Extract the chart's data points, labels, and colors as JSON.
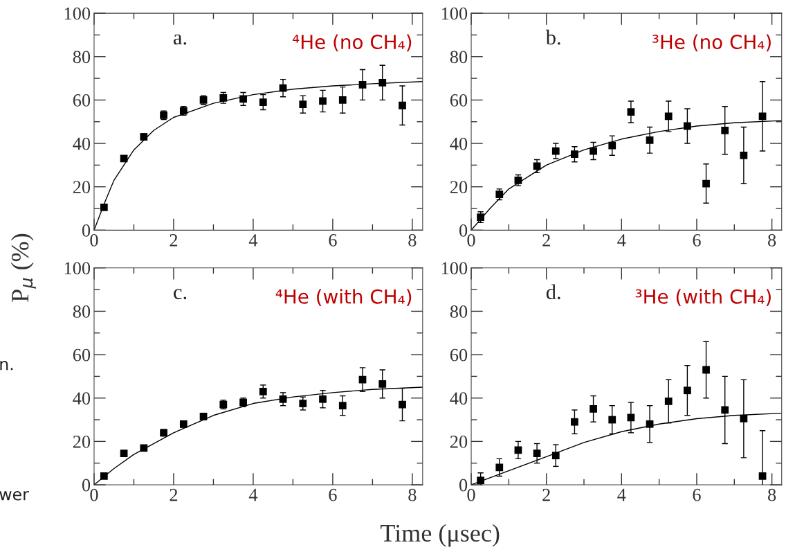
{
  "chart_data": [
    {
      "type": "scatter",
      "title": "⁴He (no CH₄)",
      "ylabel": "P$_{μ}$ (%)",
      "annotations": [
        "a."
      ],
      "xlim": [
        0,
        8.26
      ],
      "ylim": [
        0,
        100
      ],
      "xticks": [
        0,
        2,
        4,
        6,
        8
      ],
      "yticks": [
        0,
        20,
        40,
        60,
        80,
        100
      ],
      "grid": false,
      "legend": false,
      "series": [
        {
          "type": "scatter",
          "marker": "square",
          "color": "#000000",
          "x": [
            0.25,
            0.75,
            1.25,
            1.75,
            2.25,
            2.75,
            3.25,
            3.75,
            4.25,
            4.75,
            5.25,
            5.75,
            6.25,
            6.75,
            7.25,
            7.75
          ],
          "values": [
            10.5,
            33,
            43,
            53,
            55,
            60,
            61,
            60.5,
            59,
            65.5,
            58,
            59.5,
            60,
            67,
            68,
            57.5
          ],
          "errors": [
            1,
            1,
            1.5,
            2,
            2,
            2,
            2.5,
            3,
            3.5,
            4,
            4,
            5,
            6,
            7,
            8,
            9
          ]
        },
        {
          "type": "line",
          "marker": "none",
          "line_style": "solid",
          "color": "#000000",
          "x": [
            0,
            0.25,
            0.5,
            1,
            1.5,
            2,
            3,
            4,
            5,
            6,
            7,
            8.26
          ],
          "values": [
            0,
            12,
            23,
            37,
            46,
            52,
            58.5,
            62.5,
            65,
            66.5,
            67.5,
            68.5
          ]
        }
      ]
    },
    {
      "type": "scatter",
      "title": "³He (no CH₄)",
      "annotations": [
        "b."
      ],
      "xlim": [
        0,
        8.26
      ],
      "ylim": [
        0,
        100
      ],
      "xticks": [
        0,
        2,
        4,
        6,
        8
      ],
      "yticks": [
        0,
        20,
        40,
        60,
        80,
        100
      ],
      "grid": false,
      "legend": false,
      "series": [
        {
          "type": "scatter",
          "marker": "square",
          "color": "#000000",
          "x": [
            0.25,
            0.75,
            1.25,
            1.75,
            2.25,
            2.75,
            3.25,
            3.75,
            4.25,
            4.75,
            5.25,
            5.75,
            6.25,
            6.75,
            7.25,
            7.75
          ],
          "values": [
            6,
            16.5,
            23,
            29.5,
            36.5,
            35,
            36.5,
            39,
            54.5,
            41.5,
            52.5,
            48,
            21.5,
            46,
            34.5,
            52.5
          ],
          "errors": [
            2.5,
            2.5,
            2.5,
            3,
            3.5,
            3.5,
            4,
            4.5,
            5,
            6,
            7,
            8,
            9,
            11,
            13,
            16
          ]
        },
        {
          "type": "line",
          "marker": "none",
          "line_style": "solid",
          "color": "#000000",
          "x": [
            0,
            0.5,
            1,
            2,
            3,
            4,
            5,
            6,
            7,
            8.26
          ],
          "values": [
            0,
            10,
            19,
            30,
            37,
            42,
            45.5,
            48,
            49.5,
            50.5
          ]
        }
      ]
    },
    {
      "type": "scatter",
      "title": "⁴He (with CH₄)",
      "xlabel": "Time (μsec)",
      "annotations": [
        "c.",
        "n.",
        "wer"
      ],
      "xlim": [
        0,
        8.26
      ],
      "ylim": [
        0,
        100
      ],
      "xticks": [
        0,
        2,
        4,
        6,
        8
      ],
      "yticks": [
        0,
        20,
        40,
        60,
        80,
        100
      ],
      "grid": false,
      "legend": false,
      "series": [
        {
          "type": "scatter",
          "marker": "square",
          "color": "#000000",
          "x": [
            0.25,
            0.75,
            1.25,
            1.75,
            2.25,
            2.75,
            3.25,
            3.75,
            4.25,
            4.75,
            5.25,
            5.75,
            6.25,
            6.75,
            7.25,
            7.75
          ],
          "values": [
            4,
            14.5,
            17,
            24,
            28,
            31.5,
            37,
            38,
            43,
            39.5,
            37.5,
            39.5,
            36.5,
            48.5,
            46.5,
            37
          ],
          "errors": [
            1,
            1,
            1,
            1.5,
            1.5,
            1.5,
            2,
            2,
            3,
            3,
            3,
            4,
            4.5,
            5.5,
            6.5,
            7.5
          ]
        },
        {
          "type": "line",
          "marker": "none",
          "line_style": "solid",
          "color": "#000000",
          "x": [
            0,
            0.5,
            1,
            2,
            3,
            4,
            5,
            6,
            7,
            8.26
          ],
          "values": [
            0,
            7.5,
            14,
            24,
            32,
            37.5,
            40.5,
            42.5,
            44,
            45
          ]
        }
      ]
    },
    {
      "type": "scatter",
      "title": "³He (with CH₄)",
      "annotations": [
        "d."
      ],
      "xlim": [
        0,
        8.26
      ],
      "ylim": [
        0,
        100
      ],
      "xticks": [
        0,
        2,
        4,
        6,
        8
      ],
      "yticks": [
        0,
        20,
        40,
        60,
        80,
        100
      ],
      "grid": false,
      "legend": false,
      "series": [
        {
          "type": "scatter",
          "marker": "square",
          "color": "#000000",
          "x": [
            0.25,
            0.75,
            1.25,
            1.75,
            2.25,
            2.75,
            3.25,
            3.75,
            4.25,
            4.75,
            5.25,
            5.75,
            6.25,
            6.75,
            7.25,
            7.75
          ],
          "values": [
            2,
            8,
            16,
            14.5,
            13.5,
            29,
            35,
            30,
            31,
            28,
            38.5,
            43.5,
            53,
            34.5,
            30.5,
            4
          ],
          "errors": [
            3.5,
            4,
            4,
            4.5,
            5,
            5.5,
            6,
            6.5,
            7,
            8.5,
            10,
            11.5,
            13,
            15.5,
            18,
            21
          ]
        },
        {
          "type": "line",
          "marker": "none",
          "line_style": "solid",
          "color": "#000000",
          "x": [
            0,
            1,
            2,
            3,
            4,
            5,
            6,
            7,
            8.26
          ],
          "values": [
            0,
            6.5,
            13,
            19.5,
            24.5,
            28,
            30.5,
            32,
            33
          ]
        }
      ]
    }
  ]
}
